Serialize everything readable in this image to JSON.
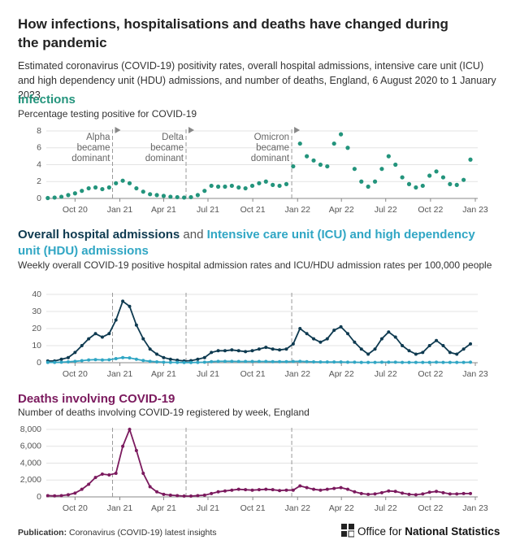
{
  "header": {
    "title": "How infections, hospitalisations and deaths have changed during the pandemic",
    "subtitle": "Estimated coronavirus (COVID-19) positivity rates, overall hospital admissions, intensive care unit (ICU) and high dependency unit (HDU) admissions, and number of deaths, England, 6 August 2020 to 1 January 2023"
  },
  "footer": {
    "publication_label": "Publication:",
    "publication": "Coronavirus (COVID-19) latest insights",
    "logo_text_1": "Office for",
    "logo_text_2": "National Statistics"
  },
  "chart_data": [
    {
      "type": "scatter",
      "title": "Infections",
      "subtitle": "Percentage testing positive for COVID-19",
      "x": [
        "2020-08-06",
        "2020-08-20",
        "2020-09-03",
        "2020-09-17",
        "2020-10-01",
        "2020-10-15",
        "2020-10-29",
        "2020-11-12",
        "2020-11-26",
        "2020-12-10",
        "2020-12-24",
        "2021-01-07",
        "2021-01-21",
        "2021-02-04",
        "2021-02-18",
        "2021-03-04",
        "2021-03-18",
        "2021-04-01",
        "2021-04-15",
        "2021-04-29",
        "2021-05-13",
        "2021-05-27",
        "2021-06-10",
        "2021-06-24",
        "2021-07-08",
        "2021-07-22",
        "2021-08-05",
        "2021-08-19",
        "2021-09-02",
        "2021-09-16",
        "2021-09-30",
        "2021-10-14",
        "2021-10-28",
        "2021-11-11",
        "2021-11-25",
        "2021-12-09",
        "2021-12-23",
        "2022-01-06",
        "2022-01-20",
        "2022-02-03",
        "2022-02-17",
        "2022-03-03",
        "2022-03-17",
        "2022-03-31",
        "2022-04-14",
        "2022-04-28",
        "2022-05-12",
        "2022-05-26",
        "2022-06-09",
        "2022-06-23",
        "2022-07-07",
        "2022-07-21",
        "2022-08-04",
        "2022-08-18",
        "2022-09-01",
        "2022-09-15",
        "2022-09-29",
        "2022-10-13",
        "2022-10-27",
        "2022-11-10",
        "2022-11-24",
        "2022-12-08",
        "2022-12-22"
      ],
      "series": [
        {
          "name": "Percentage testing positive",
          "color": "#23947c",
          "values": [
            0.05,
            0.1,
            0.2,
            0.4,
            0.6,
            0.9,
            1.2,
            1.3,
            1.1,
            1.3,
            1.8,
            2.1,
            1.8,
            1.2,
            0.8,
            0.5,
            0.4,
            0.3,
            0.2,
            0.15,
            0.1,
            0.15,
            0.4,
            0.9,
            1.5,
            1.4,
            1.4,
            1.5,
            1.3,
            1.2,
            1.5,
            1.8,
            2.0,
            1.6,
            1.5,
            1.7,
            3.8,
            6.5,
            5.0,
            4.5,
            4.0,
            3.8,
            6.5,
            7.6,
            6.0,
            3.5,
            2.0,
            1.4,
            2.0,
            3.5,
            5.0,
            4.0,
            2.5,
            1.7,
            1.3,
            1.5,
            2.7,
            3.2,
            2.5,
            1.7,
            1.6,
            2.2,
            4.6
          ]
        }
      ],
      "xlim": [
        "2020-08-03",
        "2023-01-06"
      ],
      "xticks": [
        {
          "value": "2020-10-01",
          "label": "Oct 20"
        },
        {
          "value": "2021-01-01",
          "label": "Jan 21"
        },
        {
          "value": "2021-04-01",
          "label": "Apr 21"
        },
        {
          "value": "2021-07-01",
          "label": "Jul 21"
        },
        {
          "value": "2021-10-01",
          "label": "Oct 21"
        },
        {
          "value": "2022-01-01",
          "label": "Jan 22"
        },
        {
          "value": "2022-04-01",
          "label": "Apr 22"
        },
        {
          "value": "2022-07-01",
          "label": "Jul 22"
        },
        {
          "value": "2022-10-01",
          "label": "Oct 22"
        },
        {
          "value": "2023-01-01",
          "label": "Jan 23"
        }
      ],
      "ylim": [
        0,
        8
      ],
      "yticks": [
        0,
        2,
        4,
        6,
        8
      ],
      "grid": true,
      "annotations": [
        {
          "x": "2020-12-17",
          "lines": [
            "Alpha",
            "became",
            "dominant"
          ]
        },
        {
          "x": "2021-05-17",
          "lines": [
            "Delta",
            "became",
            "dominant"
          ]
        },
        {
          "x": "2021-12-20",
          "lines": [
            "Omicron",
            "became",
            "dominant"
          ]
        }
      ]
    },
    {
      "type": "line",
      "title_connector": "and",
      "subtitle": "Weekly overall COVID-19 positive hospital admission rates and ICU/HDU admission rates per 100,000 people",
      "x": [
        "2020-08-06",
        "2020-08-20",
        "2020-09-03",
        "2020-09-17",
        "2020-10-01",
        "2020-10-15",
        "2020-10-29",
        "2020-11-12",
        "2020-11-26",
        "2020-12-10",
        "2020-12-24",
        "2021-01-07",
        "2021-01-21",
        "2021-02-04",
        "2021-02-18",
        "2021-03-04",
        "2021-03-18",
        "2021-04-01",
        "2021-04-15",
        "2021-04-29",
        "2021-05-13",
        "2021-05-27",
        "2021-06-10",
        "2021-06-24",
        "2021-07-08",
        "2021-07-22",
        "2021-08-05",
        "2021-08-19",
        "2021-09-02",
        "2021-09-16",
        "2021-09-30",
        "2021-10-14",
        "2021-10-28",
        "2021-11-11",
        "2021-11-25",
        "2021-12-09",
        "2021-12-23",
        "2022-01-06",
        "2022-01-20",
        "2022-02-03",
        "2022-02-17",
        "2022-03-03",
        "2022-03-17",
        "2022-03-31",
        "2022-04-14",
        "2022-04-28",
        "2022-05-12",
        "2022-05-26",
        "2022-06-09",
        "2022-06-23",
        "2022-07-07",
        "2022-07-21",
        "2022-08-04",
        "2022-08-18",
        "2022-09-01",
        "2022-09-15",
        "2022-09-29",
        "2022-10-13",
        "2022-10-27",
        "2022-11-10",
        "2022-11-24",
        "2022-12-08",
        "2022-12-22"
      ],
      "series": [
        {
          "name": "Overall hospital admissions",
          "color": "#0e3a50",
          "values": [
            1,
            1,
            2,
            3,
            6,
            10,
            14,
            17,
            15,
            17,
            25,
            36,
            33,
            22,
            14,
            8,
            5,
            3,
            2,
            1.5,
            1,
            1.2,
            2,
            3,
            6,
            7,
            7,
            7.5,
            7,
            6.5,
            7,
            8,
            9,
            8,
            7.5,
            8,
            11,
            20,
            17,
            14,
            12,
            14,
            19,
            21,
            17,
            12,
            8,
            5,
            8,
            14,
            18,
            15,
            10,
            7,
            5,
            6,
            10,
            13,
            10,
            6,
            5,
            8,
            11
          ]
        },
        {
          "name": "Intensive care unit (ICU) and high dependency unit (HDU) admissions",
          "color": "#30a6c4",
          "values": [
            0.2,
            0.2,
            0.3,
            0.5,
            0.8,
            1.2,
            1.6,
            1.8,
            1.6,
            1.7,
            2.4,
            3.0,
            2.8,
            2.0,
            1.3,
            0.8,
            0.5,
            0.3,
            0.2,
            0.2,
            0.1,
            0.1,
            0.2,
            0.3,
            0.6,
            0.8,
            0.8,
            0.8,
            0.7,
            0.7,
            0.7,
            0.7,
            0.7,
            0.6,
            0.6,
            0.6,
            0.7,
            0.8,
            0.6,
            0.5,
            0.4,
            0.4,
            0.4,
            0.4,
            0.3,
            0.3,
            0.2,
            0.2,
            0.2,
            0.3,
            0.3,
            0.3,
            0.2,
            0.2,
            0.2,
            0.2,
            0.2,
            0.3,
            0.2,
            0.2,
            0.2,
            0.2,
            0.3
          ]
        }
      ],
      "xlim": [
        "2020-08-03",
        "2023-01-06"
      ],
      "xticks": [
        {
          "value": "2020-10-01",
          "label": "Oct 20"
        },
        {
          "value": "2021-01-01",
          "label": "Jan 21"
        },
        {
          "value": "2021-04-01",
          "label": "Apr 21"
        },
        {
          "value": "2021-07-01",
          "label": "Jul 21"
        },
        {
          "value": "2021-10-01",
          "label": "Oct 21"
        },
        {
          "value": "2022-01-01",
          "label": "Jan 22"
        },
        {
          "value": "2022-04-01",
          "label": "Apr 22"
        },
        {
          "value": "2022-07-01",
          "label": "Jul 22"
        },
        {
          "value": "2022-10-01",
          "label": "Oct 22"
        },
        {
          "value": "2023-01-01",
          "label": "Jan 23"
        }
      ],
      "ylim": [
        0,
        40
      ],
      "yticks": [
        0,
        10,
        20,
        30,
        40
      ],
      "grid": true
    },
    {
      "type": "line",
      "title": "Deaths involving COVID-19",
      "subtitle": "Number of deaths involving COVID-19 registered by week, England",
      "x": [
        "2020-08-06",
        "2020-08-20",
        "2020-09-03",
        "2020-09-17",
        "2020-10-01",
        "2020-10-15",
        "2020-10-29",
        "2020-11-12",
        "2020-11-26",
        "2020-12-10",
        "2020-12-24",
        "2021-01-07",
        "2021-01-21",
        "2021-02-04",
        "2021-02-18",
        "2021-03-04",
        "2021-03-18",
        "2021-04-01",
        "2021-04-15",
        "2021-04-29",
        "2021-05-13",
        "2021-05-27",
        "2021-06-10",
        "2021-06-24",
        "2021-07-08",
        "2021-07-22",
        "2021-08-05",
        "2021-08-19",
        "2021-09-02",
        "2021-09-16",
        "2021-09-30",
        "2021-10-14",
        "2021-10-28",
        "2021-11-11",
        "2021-11-25",
        "2021-12-09",
        "2021-12-23",
        "2022-01-06",
        "2022-01-20",
        "2022-02-03",
        "2022-02-17",
        "2022-03-03",
        "2022-03-17",
        "2022-03-31",
        "2022-04-14",
        "2022-04-28",
        "2022-05-12",
        "2022-05-26",
        "2022-06-09",
        "2022-06-23",
        "2022-07-07",
        "2022-07-21",
        "2022-08-04",
        "2022-08-18",
        "2022-09-01",
        "2022-09-15",
        "2022-09-29",
        "2022-10-13",
        "2022-10-27",
        "2022-11-10",
        "2022-11-24",
        "2022-12-08",
        "2022-12-22"
      ],
      "series": [
        {
          "name": "Deaths involving COVID-19",
          "color": "#7b1a5e",
          "values": [
            150,
            120,
            150,
            250,
            450,
            900,
            1500,
            2300,
            2700,
            2600,
            2800,
            6000,
            8000,
            5500,
            2800,
            1200,
            600,
            300,
            200,
            150,
            100,
            100,
            150,
            200,
            400,
            600,
            700,
            800,
            900,
            850,
            800,
            850,
            900,
            850,
            750,
            800,
            800,
            1300,
            1100,
            900,
            800,
            900,
            1000,
            1100,
            900,
            600,
            400,
            300,
            350,
            500,
            700,
            650,
            450,
            300,
            250,
            350,
            550,
            650,
            500,
            350,
            350,
            400,
            400
          ]
        }
      ],
      "xlim": [
        "2020-08-03",
        "2023-01-06"
      ],
      "xticks": [
        {
          "value": "2020-10-01",
          "label": "Oct 20"
        },
        {
          "value": "2021-01-01",
          "label": "Jan 21"
        },
        {
          "value": "2021-04-01",
          "label": "Apr 21"
        },
        {
          "value": "2021-07-01",
          "label": "Jul 21"
        },
        {
          "value": "2021-10-01",
          "label": "Oct 21"
        },
        {
          "value": "2022-01-01",
          "label": "Jan 22"
        },
        {
          "value": "2022-04-01",
          "label": "Apr 22"
        },
        {
          "value": "2022-07-01",
          "label": "Jul 22"
        },
        {
          "value": "2022-10-01",
          "label": "Oct 22"
        },
        {
          "value": "2023-01-01",
          "label": "Jan 23"
        }
      ],
      "ylim": [
        0,
        8000
      ],
      "yticks": [
        0,
        {
          "value": 2000,
          "label": "2,000"
        },
        {
          "value": 4000,
          "label": "4,000"
        },
        {
          "value": 6000,
          "label": "6,000"
        },
        {
          "value": 8000,
          "label": "8,000"
        }
      ],
      "grid": true
    }
  ]
}
